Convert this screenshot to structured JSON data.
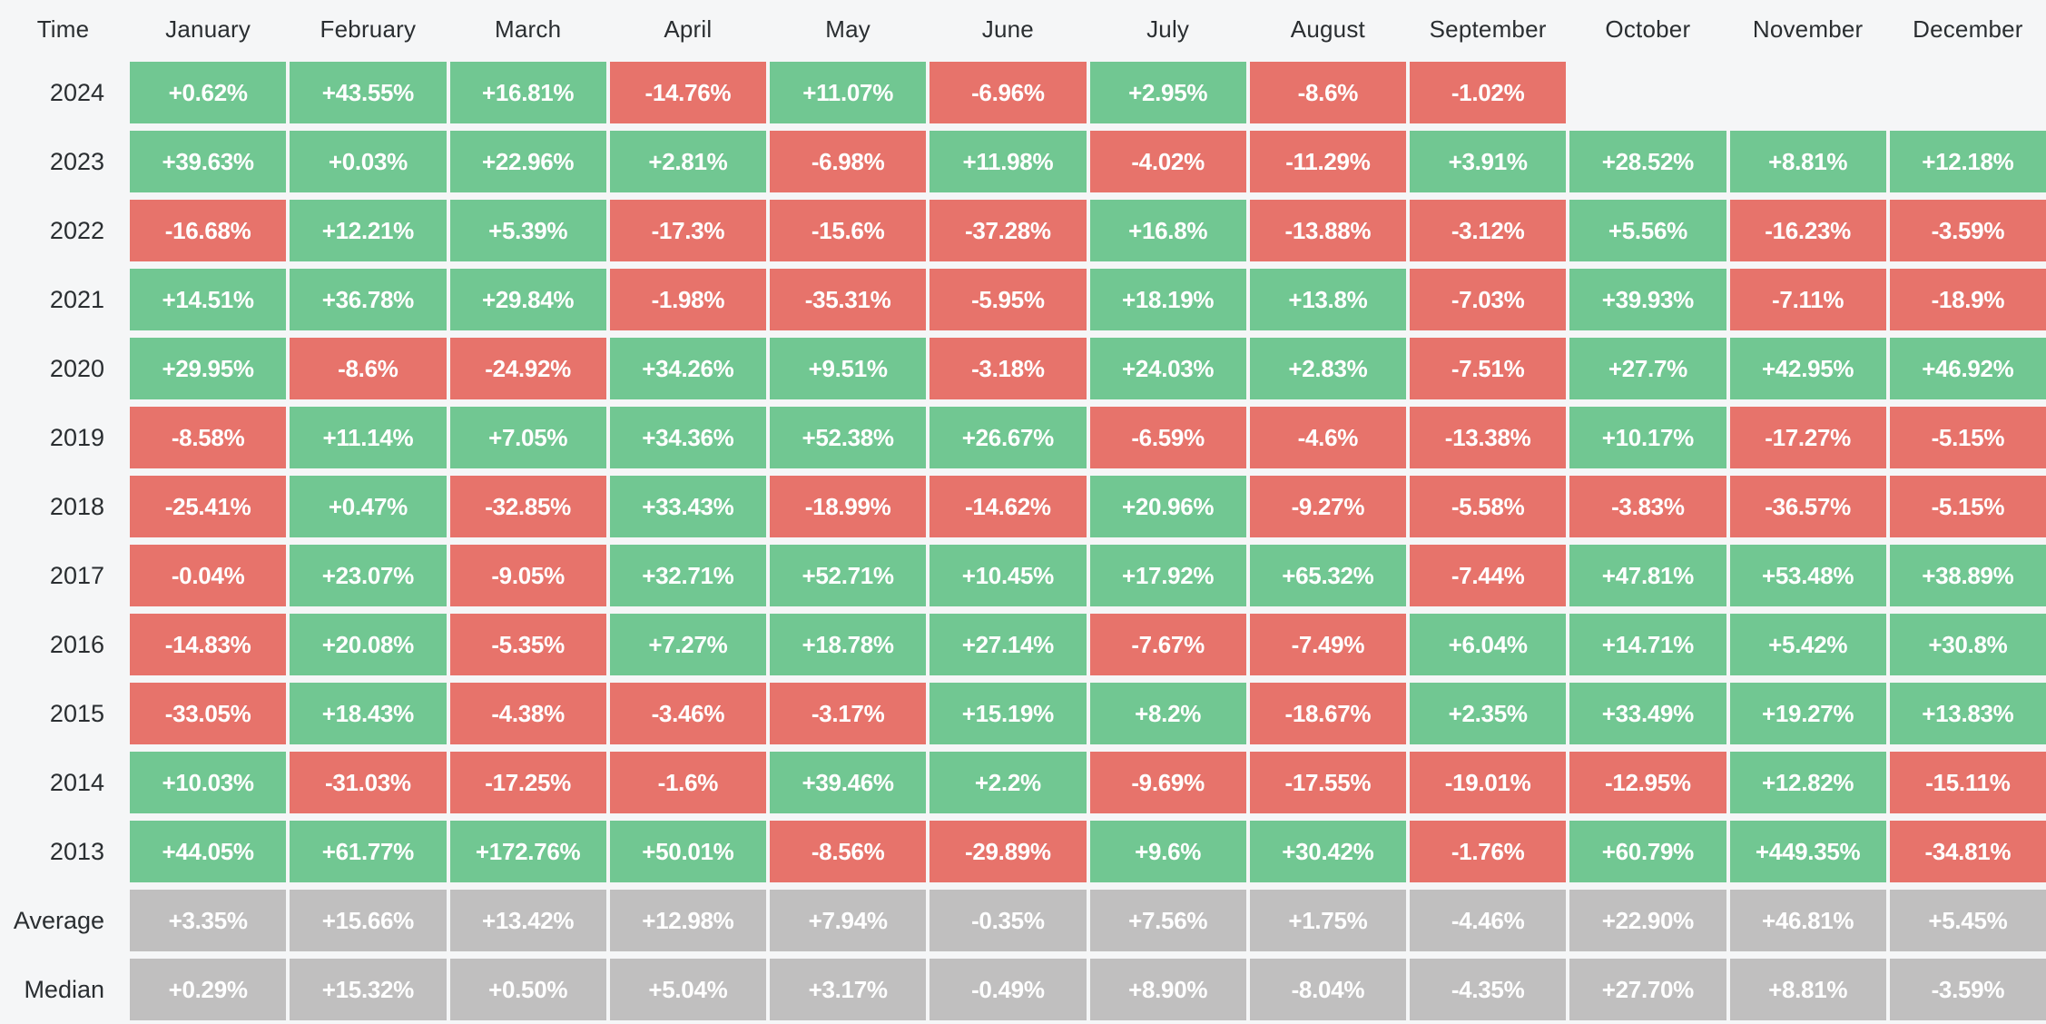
{
  "chart_data": {
    "type": "heatmap",
    "corner_label": "Time",
    "columns": [
      "January",
      "February",
      "March",
      "April",
      "May",
      "June",
      "July",
      "August",
      "September",
      "October",
      "November",
      "December"
    ],
    "rows": [
      {
        "label": "2024",
        "type": "year",
        "values": [
          "+0.62%",
          "+43.55%",
          "+16.81%",
          "-14.76%",
          "+11.07%",
          "-6.96%",
          "+2.95%",
          "-8.6%",
          "-1.02%",
          "",
          "",
          ""
        ]
      },
      {
        "label": "2023",
        "type": "year",
        "values": [
          "+39.63%",
          "+0.03%",
          "+22.96%",
          "+2.81%",
          "-6.98%",
          "+11.98%",
          "-4.02%",
          "-11.29%",
          "+3.91%",
          "+28.52%",
          "+8.81%",
          "+12.18%"
        ]
      },
      {
        "label": "2022",
        "type": "year",
        "values": [
          "-16.68%",
          "+12.21%",
          "+5.39%",
          "-17.3%",
          "-15.6%",
          "-37.28%",
          "+16.8%",
          "-13.88%",
          "-3.12%",
          "+5.56%",
          "-16.23%",
          "-3.59%"
        ]
      },
      {
        "label": "2021",
        "type": "year",
        "values": [
          "+14.51%",
          "+36.78%",
          "+29.84%",
          "-1.98%",
          "-35.31%",
          "-5.95%",
          "+18.19%",
          "+13.8%",
          "-7.03%",
          "+39.93%",
          "-7.11%",
          "-18.9%"
        ]
      },
      {
        "label": "2020",
        "type": "year",
        "values": [
          "+29.95%",
          "-8.6%",
          "-24.92%",
          "+34.26%",
          "+9.51%",
          "-3.18%",
          "+24.03%",
          "+2.83%",
          "-7.51%",
          "+27.7%",
          "+42.95%",
          "+46.92%"
        ]
      },
      {
        "label": "2019",
        "type": "year",
        "values": [
          "-8.58%",
          "+11.14%",
          "+7.05%",
          "+34.36%",
          "+52.38%",
          "+26.67%",
          "-6.59%",
          "-4.6%",
          "-13.38%",
          "+10.17%",
          "-17.27%",
          "-5.15%"
        ]
      },
      {
        "label": "2018",
        "type": "year",
        "values": [
          "-25.41%",
          "+0.47%",
          "-32.85%",
          "+33.43%",
          "-18.99%",
          "-14.62%",
          "+20.96%",
          "-9.27%",
          "-5.58%",
          "-3.83%",
          "-36.57%",
          "-5.15%"
        ]
      },
      {
        "label": "2017",
        "type": "year",
        "values": [
          "-0.04%",
          "+23.07%",
          "-9.05%",
          "+32.71%",
          "+52.71%",
          "+10.45%",
          "+17.92%",
          "+65.32%",
          "-7.44%",
          "+47.81%",
          "+53.48%",
          "+38.89%"
        ]
      },
      {
        "label": "2016",
        "type": "year",
        "values": [
          "-14.83%",
          "+20.08%",
          "-5.35%",
          "+7.27%",
          "+18.78%",
          "+27.14%",
          "-7.67%",
          "-7.49%",
          "+6.04%",
          "+14.71%",
          "+5.42%",
          "+30.8%"
        ]
      },
      {
        "label": "2015",
        "type": "year",
        "values": [
          "-33.05%",
          "+18.43%",
          "-4.38%",
          "-3.46%",
          "-3.17%",
          "+15.19%",
          "+8.2%",
          "-18.67%",
          "+2.35%",
          "+33.49%",
          "+19.27%",
          "+13.83%"
        ]
      },
      {
        "label": "2014",
        "type": "year",
        "values": [
          "+10.03%",
          "-31.03%",
          "-17.25%",
          "-1.6%",
          "+39.46%",
          "+2.2%",
          "-9.69%",
          "-17.55%",
          "-19.01%",
          "-12.95%",
          "+12.82%",
          "-15.11%"
        ]
      },
      {
        "label": "2013",
        "type": "year",
        "values": [
          "+44.05%",
          "+61.77%",
          "+172.76%",
          "+50.01%",
          "-8.56%",
          "-29.89%",
          "+9.6%",
          "+30.42%",
          "-1.76%",
          "+60.79%",
          "+449.35%",
          "-34.81%"
        ]
      },
      {
        "label": "Average",
        "type": "summary",
        "values": [
          "+3.35%",
          "+15.66%",
          "+13.42%",
          "+12.98%",
          "+7.94%",
          "-0.35%",
          "+7.56%",
          "+1.75%",
          "-4.46%",
          "+22.90%",
          "+46.81%",
          "+5.45%"
        ]
      },
      {
        "label": "Median",
        "type": "summary",
        "values": [
          "+0.29%",
          "+15.32%",
          "+0.50%",
          "+5.04%",
          "+3.17%",
          "-0.49%",
          "+8.90%",
          "-8.04%",
          "-4.35%",
          "+27.70%",
          "+8.81%",
          "-3.59%"
        ]
      }
    ],
    "colors": {
      "positive": "#71c792",
      "negative": "#e7736b",
      "summary": "#c0bfbf",
      "background": "#f5f6f7",
      "cell_text": "#ffffff",
      "label_text": "#2a2e31"
    },
    "layout": {
      "legend": "none",
      "grid": "gap-separated-cells"
    }
  }
}
